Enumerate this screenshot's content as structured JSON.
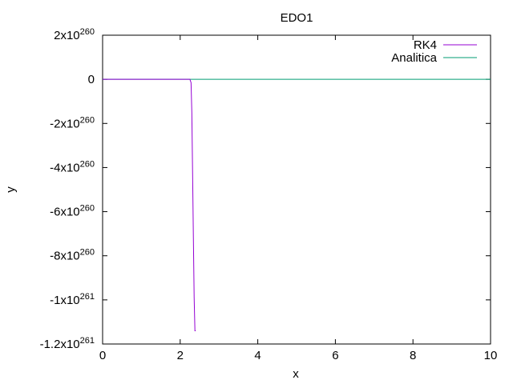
{
  "chart_data": {
    "type": "line",
    "title": "EDO1",
    "xlabel": "x",
    "ylabel": "y",
    "xlim": [
      0,
      10
    ],
    "ylim": [
      -1.2e+261,
      2e+260
    ],
    "x_ticks": [
      {
        "value": 0,
        "label": "0"
      },
      {
        "value": 2,
        "label": "2"
      },
      {
        "value": 4,
        "label": "4"
      },
      {
        "value": 6,
        "label": "6"
      },
      {
        "value": 8,
        "label": "8"
      },
      {
        "value": 10,
        "label": "10"
      }
    ],
    "y_ticks": [
      {
        "value": 2e+260,
        "mantissa": "2x10",
        "exponent": "260"
      },
      {
        "value": 0,
        "mantissa": "0",
        "exponent": ""
      },
      {
        "value": -2e+260,
        "mantissa": "-2x10",
        "exponent": "260"
      },
      {
        "value": -4e+260,
        "mantissa": "-4x10",
        "exponent": "260"
      },
      {
        "value": -6e+260,
        "mantissa": "-6x10",
        "exponent": "260"
      },
      {
        "value": -8e+260,
        "mantissa": "-8x10",
        "exponent": "260"
      },
      {
        "value": -1e+261,
        "mantissa": "-1x10",
        "exponent": "261"
      },
      {
        "value": -1.2e+261,
        "mantissa": "-1.2x10",
        "exponent": "261"
      }
    ],
    "grid": false,
    "legend_position": "top-right",
    "series": [
      {
        "name": "RK4",
        "color": "#9400d3",
        "x": [
          0,
          2.2,
          2.25,
          2.28,
          2.3,
          2.32,
          2.34,
          2.36,
          2.38,
          2.4
        ],
        "y": [
          0,
          0,
          0,
          -1.5e+259,
          -1.5e+260,
          -4.3e+260,
          -7.2e+260,
          -9.9e+260,
          -1.14e+261,
          -1.14e+261
        ]
      },
      {
        "name": "Analitica",
        "color": "#009e73",
        "x": [
          0,
          10
        ],
        "y": [
          0,
          0
        ]
      }
    ]
  }
}
